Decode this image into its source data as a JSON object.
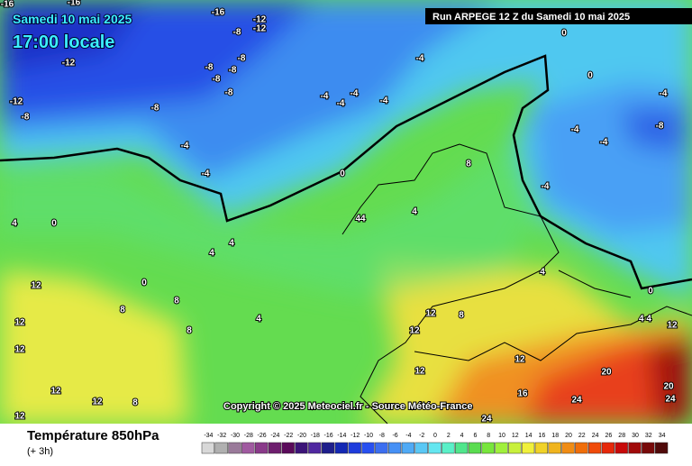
{
  "header": {
    "date": "Samedi 10 mai 2025",
    "time": "17:00 locale",
    "run": "Run ARPEGE 12 Z du Samedi 10 mai 2025",
    "copyright": "Copyright © 2025 Meteociel.fr - Source Météo-France"
  },
  "footer": {
    "title": "Température 850hPa",
    "step": "(+ 3h)"
  },
  "legend": {
    "values": [
      -34,
      -32,
      -30,
      -28,
      -26,
      -24,
      -22,
      -20,
      -18,
      -16,
      -14,
      -12,
      -10,
      -8,
      -6,
      -4,
      -2,
      0,
      2,
      4,
      6,
      8,
      10,
      12,
      14,
      16,
      18,
      20,
      22,
      24,
      26,
      28,
      30,
      32,
      34
    ],
    "colors": [
      "#d8d8d8",
      "#b0b0b0",
      "#9a7a9a",
      "#a05aa0",
      "#8a3a8a",
      "#6e1e6e",
      "#5a0a5a",
      "#3c1478",
      "#5028a0",
      "#1e1e8c",
      "#1428b4",
      "#1e3cdc",
      "#2850f0",
      "#3c6ef0",
      "#4690f5",
      "#50aaf5",
      "#5ac8f5",
      "#64e6f0",
      "#5af0c8",
      "#50e68c",
      "#5adc50",
      "#78e63c",
      "#a0f03c",
      "#c8f03c",
      "#f0f03c",
      "#f0d228",
      "#f0b41e",
      "#f08c14",
      "#f06e0a",
      "#f04b0a",
      "#e6280a",
      "#c80a0a",
      "#a00a0a",
      "#780a0a",
      "#500a0a"
    ]
  },
  "map_labels": [
    "-16",
    "-16",
    "-16",
    "-12",
    "-12",
    "-8",
    "-12",
    "-8",
    "-8",
    "-8",
    "-8",
    "-8",
    "-12",
    "-8",
    "-8",
    "-4",
    "-4",
    "-4",
    "-4",
    "-4",
    "-4",
    "-4",
    "0",
    "0",
    "0",
    "-4",
    "-4",
    "-4",
    "-8",
    "-4",
    "4",
    "0",
    "4",
    "4",
    "44",
    "4",
    "8",
    "12",
    "0",
    "8",
    "8",
    "8",
    "4",
    "12",
    "12",
    "12",
    "12",
    "12",
    "8",
    "12",
    "12",
    "12",
    "16",
    "20",
    "20",
    "24",
    "24",
    "24",
    "4",
    "0",
    "4 4",
    "12",
    "8",
    "12"
  ]
}
